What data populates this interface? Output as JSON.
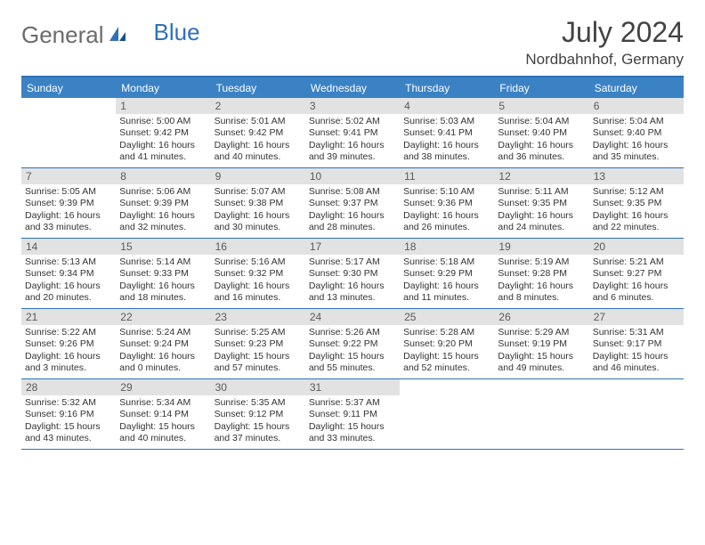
{
  "logo": {
    "general": "General",
    "blue": "Blue"
  },
  "title": "July 2024",
  "location": "Nordbahnhof, Germany",
  "colors": {
    "header_bg": "#3b82c4",
    "header_border": "#2f71b8",
    "daynum_bg": "#e2e2e2",
    "logo_gray": "#6b6b6b",
    "logo_blue": "#2f71b8"
  },
  "weekdays": [
    "Sunday",
    "Monday",
    "Tuesday",
    "Wednesday",
    "Thursday",
    "Friday",
    "Saturday"
  ],
  "weeks": [
    [
      {
        "n": "",
        "sunrise": "",
        "sunset": "",
        "daylight": ""
      },
      {
        "n": "1",
        "sunrise": "Sunrise: 5:00 AM",
        "sunset": "Sunset: 9:42 PM",
        "daylight": "Daylight: 16 hours and 41 minutes."
      },
      {
        "n": "2",
        "sunrise": "Sunrise: 5:01 AM",
        "sunset": "Sunset: 9:42 PM",
        "daylight": "Daylight: 16 hours and 40 minutes."
      },
      {
        "n": "3",
        "sunrise": "Sunrise: 5:02 AM",
        "sunset": "Sunset: 9:41 PM",
        "daylight": "Daylight: 16 hours and 39 minutes."
      },
      {
        "n": "4",
        "sunrise": "Sunrise: 5:03 AM",
        "sunset": "Sunset: 9:41 PM",
        "daylight": "Daylight: 16 hours and 38 minutes."
      },
      {
        "n": "5",
        "sunrise": "Sunrise: 5:04 AM",
        "sunset": "Sunset: 9:40 PM",
        "daylight": "Daylight: 16 hours and 36 minutes."
      },
      {
        "n": "6",
        "sunrise": "Sunrise: 5:04 AM",
        "sunset": "Sunset: 9:40 PM",
        "daylight": "Daylight: 16 hours and 35 minutes."
      }
    ],
    [
      {
        "n": "7",
        "sunrise": "Sunrise: 5:05 AM",
        "sunset": "Sunset: 9:39 PM",
        "daylight": "Daylight: 16 hours and 33 minutes."
      },
      {
        "n": "8",
        "sunrise": "Sunrise: 5:06 AM",
        "sunset": "Sunset: 9:39 PM",
        "daylight": "Daylight: 16 hours and 32 minutes."
      },
      {
        "n": "9",
        "sunrise": "Sunrise: 5:07 AM",
        "sunset": "Sunset: 9:38 PM",
        "daylight": "Daylight: 16 hours and 30 minutes."
      },
      {
        "n": "10",
        "sunrise": "Sunrise: 5:08 AM",
        "sunset": "Sunset: 9:37 PM",
        "daylight": "Daylight: 16 hours and 28 minutes."
      },
      {
        "n": "11",
        "sunrise": "Sunrise: 5:10 AM",
        "sunset": "Sunset: 9:36 PM",
        "daylight": "Daylight: 16 hours and 26 minutes."
      },
      {
        "n": "12",
        "sunrise": "Sunrise: 5:11 AM",
        "sunset": "Sunset: 9:35 PM",
        "daylight": "Daylight: 16 hours and 24 minutes."
      },
      {
        "n": "13",
        "sunrise": "Sunrise: 5:12 AM",
        "sunset": "Sunset: 9:35 PM",
        "daylight": "Daylight: 16 hours and 22 minutes."
      }
    ],
    [
      {
        "n": "14",
        "sunrise": "Sunrise: 5:13 AM",
        "sunset": "Sunset: 9:34 PM",
        "daylight": "Daylight: 16 hours and 20 minutes."
      },
      {
        "n": "15",
        "sunrise": "Sunrise: 5:14 AM",
        "sunset": "Sunset: 9:33 PM",
        "daylight": "Daylight: 16 hours and 18 minutes."
      },
      {
        "n": "16",
        "sunrise": "Sunrise: 5:16 AM",
        "sunset": "Sunset: 9:32 PM",
        "daylight": "Daylight: 16 hours and 16 minutes."
      },
      {
        "n": "17",
        "sunrise": "Sunrise: 5:17 AM",
        "sunset": "Sunset: 9:30 PM",
        "daylight": "Daylight: 16 hours and 13 minutes."
      },
      {
        "n": "18",
        "sunrise": "Sunrise: 5:18 AM",
        "sunset": "Sunset: 9:29 PM",
        "daylight": "Daylight: 16 hours and 11 minutes."
      },
      {
        "n": "19",
        "sunrise": "Sunrise: 5:19 AM",
        "sunset": "Sunset: 9:28 PM",
        "daylight": "Daylight: 16 hours and 8 minutes."
      },
      {
        "n": "20",
        "sunrise": "Sunrise: 5:21 AM",
        "sunset": "Sunset: 9:27 PM",
        "daylight": "Daylight: 16 hours and 6 minutes."
      }
    ],
    [
      {
        "n": "21",
        "sunrise": "Sunrise: 5:22 AM",
        "sunset": "Sunset: 9:26 PM",
        "daylight": "Daylight: 16 hours and 3 minutes."
      },
      {
        "n": "22",
        "sunrise": "Sunrise: 5:24 AM",
        "sunset": "Sunset: 9:24 PM",
        "daylight": "Daylight: 16 hours and 0 minutes."
      },
      {
        "n": "23",
        "sunrise": "Sunrise: 5:25 AM",
        "sunset": "Sunset: 9:23 PM",
        "daylight": "Daylight: 15 hours and 57 minutes."
      },
      {
        "n": "24",
        "sunrise": "Sunrise: 5:26 AM",
        "sunset": "Sunset: 9:22 PM",
        "daylight": "Daylight: 15 hours and 55 minutes."
      },
      {
        "n": "25",
        "sunrise": "Sunrise: 5:28 AM",
        "sunset": "Sunset: 9:20 PM",
        "daylight": "Daylight: 15 hours and 52 minutes."
      },
      {
        "n": "26",
        "sunrise": "Sunrise: 5:29 AM",
        "sunset": "Sunset: 9:19 PM",
        "daylight": "Daylight: 15 hours and 49 minutes."
      },
      {
        "n": "27",
        "sunrise": "Sunrise: 5:31 AM",
        "sunset": "Sunset: 9:17 PM",
        "daylight": "Daylight: 15 hours and 46 minutes."
      }
    ],
    [
      {
        "n": "28",
        "sunrise": "Sunrise: 5:32 AM",
        "sunset": "Sunset: 9:16 PM",
        "daylight": "Daylight: 15 hours and 43 minutes."
      },
      {
        "n": "29",
        "sunrise": "Sunrise: 5:34 AM",
        "sunset": "Sunset: 9:14 PM",
        "daylight": "Daylight: 15 hours and 40 minutes."
      },
      {
        "n": "30",
        "sunrise": "Sunrise: 5:35 AM",
        "sunset": "Sunset: 9:12 PM",
        "daylight": "Daylight: 15 hours and 37 minutes."
      },
      {
        "n": "31",
        "sunrise": "Sunrise: 5:37 AM",
        "sunset": "Sunset: 9:11 PM",
        "daylight": "Daylight: 15 hours and 33 minutes."
      },
      {
        "n": "",
        "sunrise": "",
        "sunset": "",
        "daylight": ""
      },
      {
        "n": "",
        "sunrise": "",
        "sunset": "",
        "daylight": ""
      },
      {
        "n": "",
        "sunrise": "",
        "sunset": "",
        "daylight": ""
      }
    ]
  ]
}
